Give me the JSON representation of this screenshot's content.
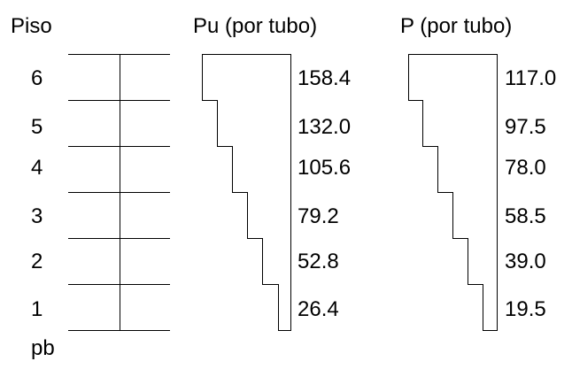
{
  "headers": {
    "floor": "Piso",
    "pu": "Pu (por tubo)",
    "p": "P (por tubo)"
  },
  "floors": [
    "6",
    "5",
    "4",
    "3",
    "2",
    "1",
    "pb"
  ],
  "pu_values": [
    "158.4",
    "132.0",
    "105.6",
    "79.2",
    "52.8",
    "26.4"
  ],
  "p_values": [
    "117.0",
    "97.5",
    "78.0",
    "58.5",
    "39.0",
    "19.5"
  ],
  "colors": {
    "ink": "#000000",
    "background": "#ffffff"
  }
}
